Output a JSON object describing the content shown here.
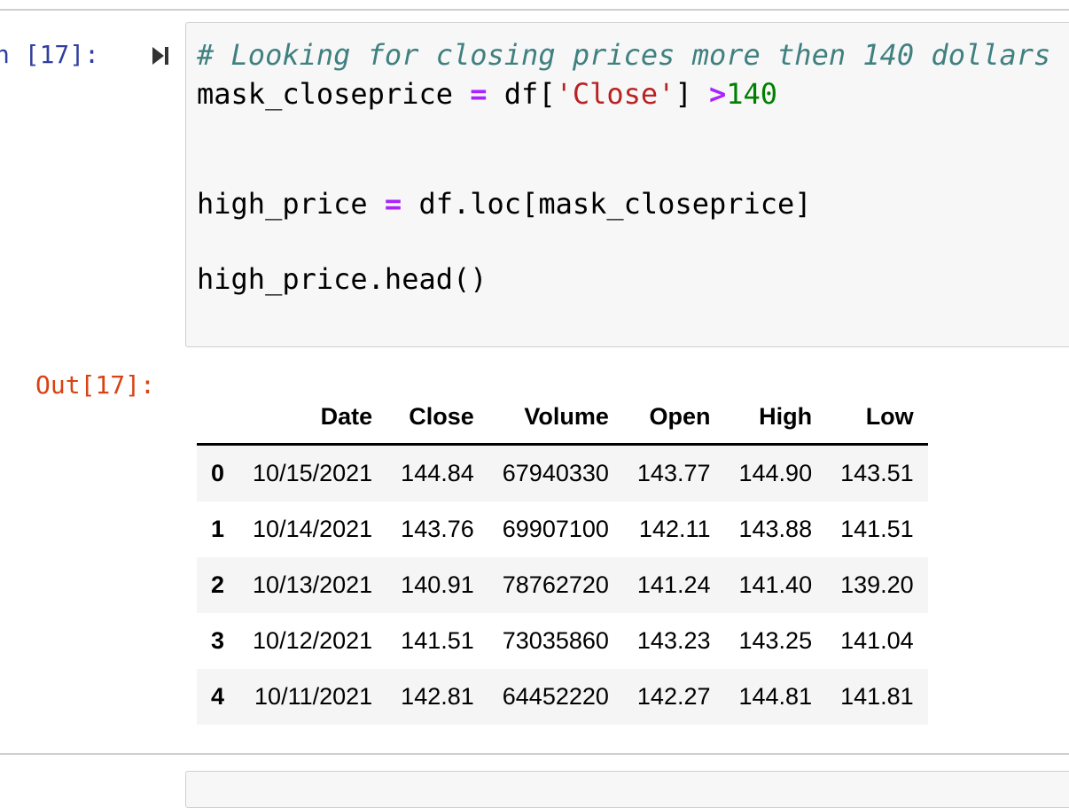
{
  "input_prompt": "n [17]:",
  "code": {
    "lines": [
      [
        "# Looking for closing prices more then 140 dollars"
      ],
      [
        "mask_closeprice ",
        "=",
        " df[",
        "'Close'",
        "] ",
        ">",
        "140"
      ],
      [
        "high_price ",
        "=",
        " df.loc[mask_closeprice]"
      ],
      [
        "high_price.head()"
      ]
    ]
  },
  "output_prompt": "Out[17]:",
  "table": {
    "columns": [
      "Date",
      "Close",
      "Volume",
      "Open",
      "High",
      "Low"
    ],
    "index": [
      "0",
      "1",
      "2",
      "3",
      "4"
    ],
    "rows": [
      [
        "10/15/2021",
        "144.84",
        "67940330",
        "143.77",
        "144.90",
        "143.51"
      ],
      [
        "10/14/2021",
        "143.76",
        "69907100",
        "142.11",
        "143.88",
        "141.51"
      ],
      [
        "10/13/2021",
        "140.91",
        "78762720",
        "141.24",
        "141.40",
        "139.20"
      ],
      [
        "10/12/2021",
        "141.51",
        "73035860",
        "143.23",
        "143.25",
        "141.04"
      ],
      [
        "10/11/2021",
        "142.81",
        "64452220",
        "142.27",
        "144.81",
        "141.81"
      ]
    ]
  }
}
